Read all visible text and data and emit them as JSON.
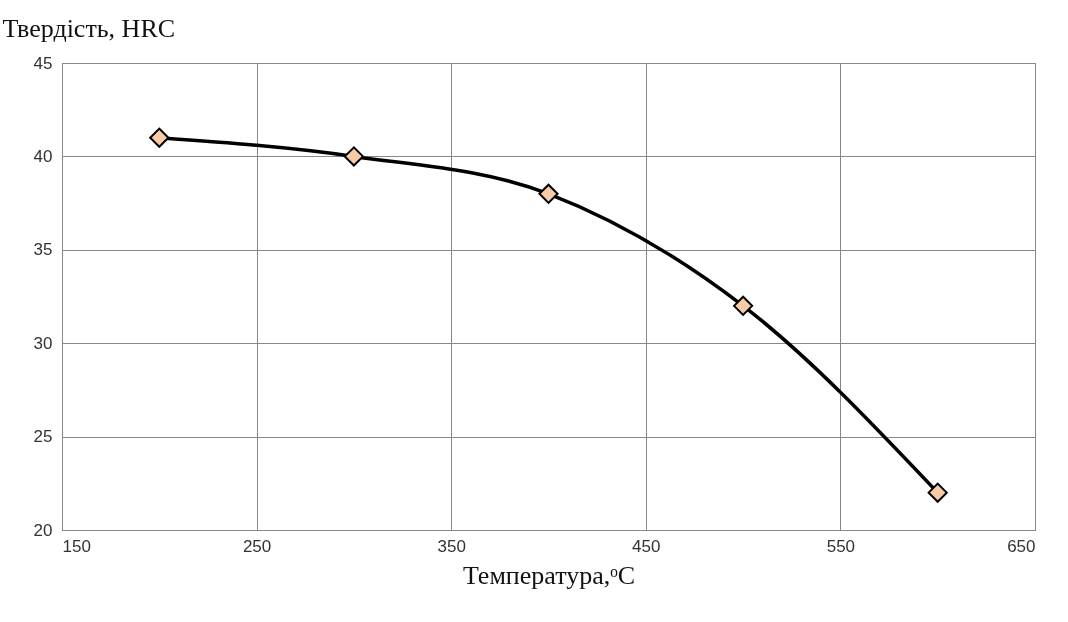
{
  "chart_data": {
    "type": "line",
    "xlabel": "Температура,ᵒC",
    "ylabel": "Твердість, HRC",
    "x": [
      200,
      300,
      400,
      500,
      600
    ],
    "series": [
      {
        "color": "#000000",
        "values": [
          41,
          40,
          38,
          32,
          22
        ]
      }
    ],
    "xlim": [
      150,
      650
    ],
    "xticks": [
      150,
      250,
      350,
      450,
      550,
      650
    ],
    "ylim": [
      20,
      45
    ],
    "yticks": [
      20,
      25,
      30,
      35,
      40,
      45
    ],
    "grid": true,
    "marker": "diamond",
    "line_style": "solid"
  }
}
